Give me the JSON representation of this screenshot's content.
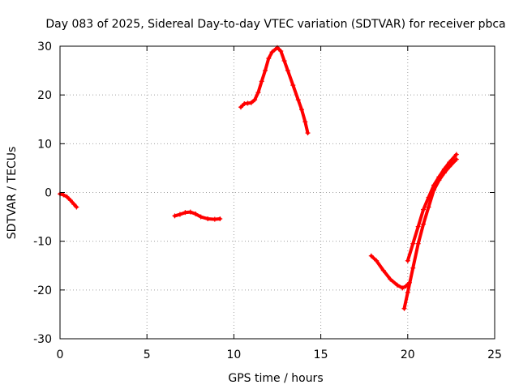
{
  "chart_data": {
    "type": "scatter",
    "title": "Day 083 of 2025, Sidereal Day-to-day VTEC variation (SDTVAR) for receiver pbca",
    "xlabel": "GPS time / hours",
    "ylabel": "SDTVAR / TECUs",
    "xlim": [
      0,
      25
    ],
    "ylim": [
      -30,
      30
    ],
    "xticks": [
      0,
      5,
      10,
      15,
      20,
      25
    ],
    "yticks": [
      -30,
      -20,
      -10,
      0,
      10,
      20,
      30
    ],
    "grid": true,
    "series_color": "#ff0000",
    "series": [
      {
        "segments": [
          [
            [
              0.0,
              -0.3
            ],
            [
              0.2,
              -0.5
            ],
            [
              0.4,
              -0.9
            ],
            [
              0.6,
              -1.6
            ],
            [
              0.8,
              -2.4
            ],
            [
              0.95,
              -3.0
            ]
          ],
          [
            [
              6.6,
              -4.8
            ],
            [
              6.9,
              -4.5
            ],
            [
              7.2,
              -4.1
            ],
            [
              7.5,
              -4.0
            ],
            [
              7.8,
              -4.4
            ],
            [
              8.1,
              -5.0
            ],
            [
              8.5,
              -5.4
            ],
            [
              8.9,
              -5.5
            ],
            [
              9.2,
              -5.4
            ]
          ],
          [
            [
              10.4,
              17.5
            ],
            [
              10.6,
              18.2
            ],
            [
              10.8,
              18.3
            ],
            [
              11.0,
              18.4
            ],
            [
              11.2,
              19.0
            ],
            [
              11.4,
              20.5
            ],
            [
              11.6,
              22.8
            ],
            [
              11.8,
              25.0
            ],
            [
              12.0,
              27.5
            ],
            [
              12.2,
              28.8
            ],
            [
              12.5,
              29.7
            ],
            [
              12.7,
              29.0
            ],
            [
              12.9,
              27.0
            ],
            [
              13.1,
              25.0
            ],
            [
              13.4,
              22.0
            ],
            [
              13.7,
              19.0
            ],
            [
              13.9,
              17.0
            ],
            [
              14.1,
              14.5
            ],
            [
              14.25,
              12.2
            ]
          ],
          [
            [
              17.9,
              -13.0
            ],
            [
              18.2,
              -14.0
            ],
            [
              18.6,
              -16.0
            ],
            [
              19.0,
              -17.8
            ],
            [
              19.4,
              -19.0
            ],
            [
              19.7,
              -19.6
            ],
            [
              19.9,
              -19.2
            ],
            [
              20.1,
              -18.5
            ]
          ],
          [
            [
              19.8,
              -23.8
            ],
            [
              20.0,
              -20.5
            ],
            [
              20.3,
              -15.5
            ],
            [
              20.6,
              -10.5
            ],
            [
              20.9,
              -6.5
            ],
            [
              21.2,
              -3.0
            ],
            [
              21.5,
              0.5
            ],
            [
              21.8,
              2.5
            ],
            [
              22.1,
              4.0
            ],
            [
              22.4,
              5.3
            ],
            [
              22.8,
              6.8
            ]
          ],
          [
            [
              20.0,
              -14.0
            ],
            [
              20.3,
              -10.5
            ],
            [
              20.6,
              -7.0
            ],
            [
              20.9,
              -3.5
            ],
            [
              21.2,
              -1.0
            ],
            [
              21.5,
              1.5
            ],
            [
              21.8,
              3.2
            ],
            [
              22.1,
              4.8
            ],
            [
              22.4,
              6.2
            ],
            [
              22.8,
              7.8
            ]
          ]
        ]
      }
    ]
  }
}
